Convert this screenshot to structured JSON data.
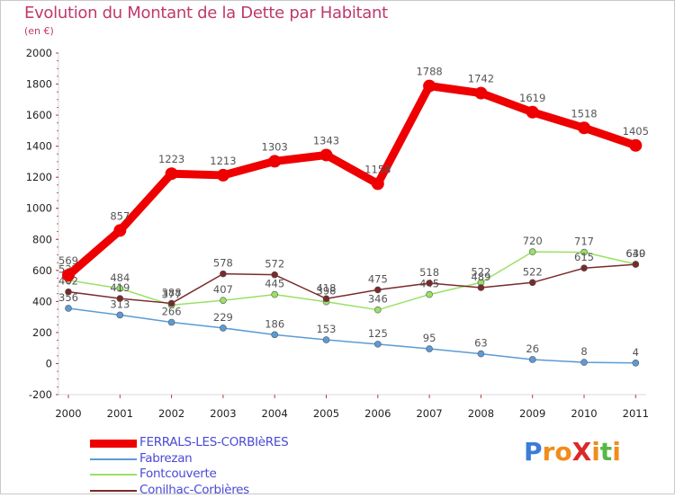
{
  "title": "Evolution du Montant de la Dette par Habitant",
  "subtitle": "(en €)",
  "chart_data": {
    "type": "line",
    "title": "Evolution du Montant de la Dette par Habitant",
    "subtitle": "(en €)",
    "xlabel": "",
    "ylabel": "",
    "x": [
      "2000",
      "2001",
      "2002",
      "2003",
      "2004",
      "2005",
      "2006",
      "2007",
      "2008",
      "2009",
      "2010",
      "2011"
    ],
    "ylim": [
      -200,
      2000
    ],
    "yticks": [
      "-200",
      "0",
      "200",
      "400",
      "600",
      "800",
      "1000",
      "1200",
      "1400",
      "1600",
      "1800",
      "2000"
    ],
    "grid": false,
    "legend_position": "bottom-left",
    "series": [
      {
        "name": "FERRALS-LES-CORBIèRES",
        "color": "#ee0000",
        "values": [
          569,
          857,
          1223,
          1213,
          1303,
          1343,
          1158,
          1788,
          1742,
          1619,
          1518,
          1405
        ],
        "labels": [
          "569",
          "857",
          "1223",
          "1213",
          "1303",
          "1343",
          "1158",
          "1788",
          "1742",
          "1619",
          "1518",
          "1405"
        ]
      },
      {
        "name": "Fabrezan",
        "color": "#5b9bd5",
        "values": [
          356,
          313,
          266,
          229,
          186,
          153,
          125,
          95,
          63,
          26,
          8,
          4
        ],
        "labels": [
          "356",
          "313",
          "266",
          "229",
          "186",
          "153",
          "125",
          "95",
          "63",
          "26",
          "8",
          "4"
        ]
      },
      {
        "name": "Fontcouverte",
        "color": "#99e066",
        "values": [
          537,
          484,
          377,
          407,
          445,
          398,
          346,
          445,
          522,
          720,
          717,
          640
        ],
        "labels": [
          "537",
          "484",
          "377",
          "407",
          "445",
          "398",
          "346",
          "445",
          "522",
          "720",
          "717",
          "640"
        ]
      },
      {
        "name": "Conilhac-Corbières",
        "color": "#7a2a2a",
        "values": [
          462,
          419,
          388,
          578,
          572,
          418,
          475,
          518,
          489,
          522,
          615,
          639
        ],
        "labels": [
          "462",
          "419",
          "388",
          "578",
          "572",
          "418",
          "475",
          "518",
          "489",
          "522",
          "615",
          "639"
        ]
      }
    ]
  },
  "logo": {
    "text": "ProXiti",
    "letters": [
      "P",
      "r",
      "o",
      "X",
      "i",
      "t",
      "i"
    ],
    "colors": [
      "#3b7dd8",
      "#f28c1b",
      "#f28c1b",
      "#d92a2a",
      "#f28c1b",
      "#59b845",
      "#f28c1b"
    ]
  }
}
